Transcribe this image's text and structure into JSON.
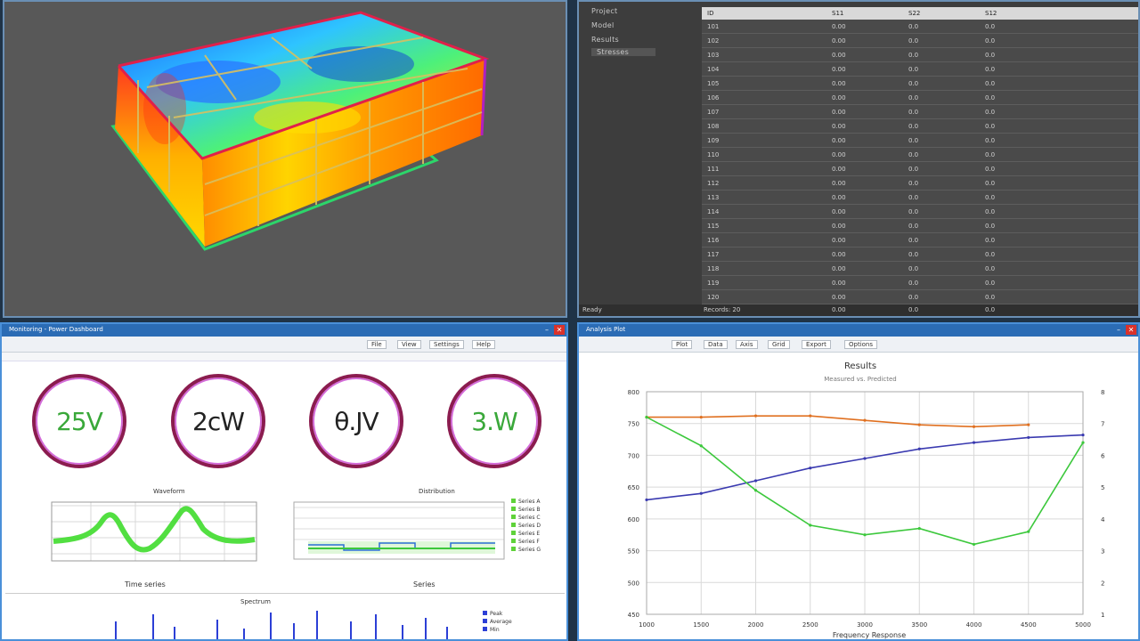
{
  "viewport": {
    "label": "3D structural result view"
  },
  "table_pane": {
    "tree": [
      "Project",
      "Model",
      "Results",
      "Stresses"
    ],
    "columns": [
      "ID",
      "S11",
      "S22",
      "S12"
    ],
    "rows": [
      [
        "101",
        "0.00",
        "0.0",
        "0.0"
      ],
      [
        "102",
        "0.00",
        "0.0",
        "0.0"
      ],
      [
        "103",
        "0.00",
        "0.0",
        "0.0"
      ],
      [
        "104",
        "0.00",
        "0.0",
        "0.0"
      ],
      [
        "105",
        "0.00",
        "0.0",
        "0.0"
      ],
      [
        "106",
        "0.00",
        "0.0",
        "0.0"
      ],
      [
        "107",
        "0.00",
        "0.0",
        "0.0"
      ],
      [
        "108",
        "0.00",
        "0.0",
        "0.0"
      ],
      [
        "109",
        "0.00",
        "0.0",
        "0.0"
      ],
      [
        "110",
        "0.00",
        "0.0",
        "0.0"
      ],
      [
        "111",
        "0.00",
        "0.0",
        "0.0"
      ],
      [
        "112",
        "0.00",
        "0.0",
        "0.0"
      ],
      [
        "113",
        "0.00",
        "0.0",
        "0.0"
      ],
      [
        "114",
        "0.00",
        "0.0",
        "0.0"
      ],
      [
        "115",
        "0.00",
        "0.0",
        "0.0"
      ],
      [
        "116",
        "0.00",
        "0.0",
        "0.0"
      ],
      [
        "117",
        "0.00",
        "0.0",
        "0.0"
      ],
      [
        "118",
        "0.00",
        "0.0",
        "0.0"
      ],
      [
        "119",
        "0.00",
        "0.0",
        "0.0"
      ],
      [
        "120",
        "0.00",
        "0.0",
        "0.0"
      ]
    ],
    "status": [
      "Ready",
      "Records: 20",
      "0.00",
      "0.0",
      "0.0"
    ]
  },
  "meters_window": {
    "title": "Monitoring - Power Dashboard",
    "toolbar": [
      "File",
      "View",
      "Settings",
      "Help"
    ],
    "gauges": [
      {
        "value": "25V",
        "color": "#3aa83a"
      },
      {
        "value": "2cW",
        "color": "#222222"
      },
      {
        "value": "θ.JV",
        "color": "#222222"
      },
      {
        "value": "3.W",
        "color": "#3aa83a"
      }
    ],
    "chart1": {
      "title": "Waveform",
      "footer": "Time series"
    },
    "chart2": {
      "title": "Distribution",
      "footer": "Series"
    },
    "chart3": {
      "title": "Spectrum"
    },
    "legend2": [
      "Series A",
      "Series B",
      "Series C",
      "Series D",
      "Series E",
      "Series F",
      "Series G"
    ],
    "legend3": [
      "Peak",
      "Average",
      "Min"
    ]
  },
  "plot_window": {
    "title": "Analysis Plot",
    "toolbar": [
      "Plot",
      "Data",
      "Axis",
      "Grid",
      "Export",
      "Options"
    ],
    "title_text": "Results",
    "subtitle_text": "Measured vs. Predicted",
    "xlabel": "Frequency Response",
    "x_ticks": [
      "1000",
      "1500",
      "2000",
      "2500",
      "3000",
      "3500",
      "4000",
      "4500",
      "5000"
    ],
    "y_ticks": [
      "800",
      "750",
      "700",
      "650",
      "600",
      "550",
      "500",
      "450"
    ],
    "right_ticks": [
      "8",
      "7",
      "6",
      "5",
      "4",
      "3",
      "2",
      "1"
    ]
  },
  "chart_data": {
    "type": "line",
    "title": "Results",
    "xlabel": "Frequency Response",
    "x": [
      1000,
      1500,
      2000,
      2500,
      3000,
      3500,
      4000,
      4500,
      5000
    ],
    "ylim": [
      450,
      800
    ],
    "series": [
      {
        "name": "",
        "color": "#e07020",
        "values": [
          760,
          760,
          762,
          762,
          755,
          748,
          745,
          748,
          null
        ]
      },
      {
        "name": "",
        "color": "#3a3ab0",
        "values": [
          630,
          640,
          660,
          680,
          695,
          710,
          720,
          728,
          732
        ]
      },
      {
        "name": "",
        "color": "#3cc83c",
        "values": [
          760,
          715,
          645,
          590,
          575,
          585,
          560,
          580,
          720
        ]
      }
    ]
  }
}
